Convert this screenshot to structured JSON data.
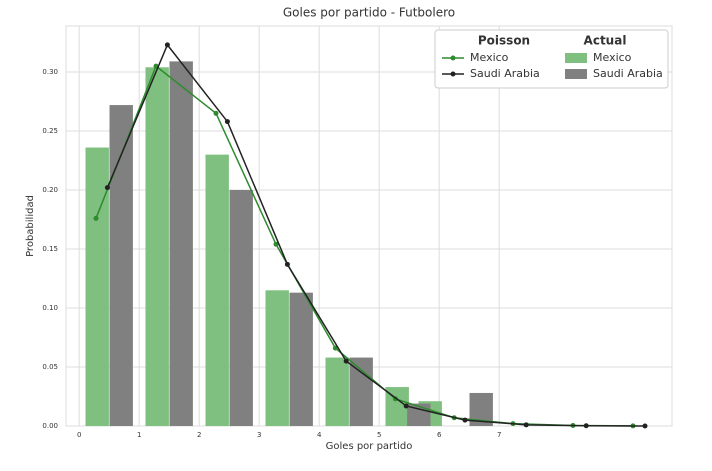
{
  "chart_data": {
    "type": "combo",
    "title": "Goles por partido - Futbolero",
    "xlabel": "Goles por partido",
    "ylabel": "Probabilidad",
    "xlim": [
      -0.22,
      9.88
    ],
    "xticks": [
      0,
      1,
      2,
      3,
      4,
      5,
      6,
      7
    ],
    "ylim": [
      0,
      0.339
    ],
    "yticks": [
      {
        "value": 0,
        "label": "0.00"
      },
      {
        "value": 0.05,
        "label": "0.05"
      },
      {
        "value": 0.1,
        "label": "0.10"
      },
      {
        "value": 0.15,
        "label": "0.15"
      },
      {
        "value": 0.2,
        "label": "0.20"
      },
      {
        "value": 0.25,
        "label": "0.25"
      },
      {
        "value": 0.3,
        "label": "0.30"
      }
    ],
    "grid": true,
    "legend": "upper right",
    "legend_titles": [
      "Poisson",
      "Actual"
    ],
    "series": [
      {
        "name": "Mexico",
        "type": "line",
        "color": "#2e8b2e",
        "x": [
          0.28,
          1.28,
          2.28,
          3.28,
          4.27,
          5.27,
          6.25,
          7.23,
          8.23,
          9.23
        ],
        "values": [
          0.176,
          0.305,
          0.265,
          0.154,
          0.066,
          0.023,
          0.007,
          0.002,
          0.0004,
          0.0001
        ]
      },
      {
        "name": "Saudi Arabia",
        "type": "line",
        "color": "#222222",
        "x": [
          0.47,
          1.47,
          2.47,
          3.47,
          4.45,
          5.45,
          6.43,
          7.45,
          8.45,
          9.43
        ],
        "values": [
          0.202,
          0.323,
          0.258,
          0.137,
          0.055,
          0.017,
          0.005,
          0.001,
          0.0002,
          0.0
        ]
      },
      {
        "name": "Mexico",
        "type": "bar",
        "color": "#7fbf7f",
        "x": [
          0.3,
          1.3,
          2.3,
          3.3,
          4.3,
          5.3,
          5.85
        ],
        "values": [
          0.236,
          0.304,
          0.23,
          0.115,
          0.058,
          0.033,
          0.021
        ]
      },
      {
        "name": "Saudi Arabia",
        "type": "bar",
        "color": "#808080",
        "x": [
          0.7,
          1.7,
          2.7,
          3.7,
          4.7,
          5.66,
          6.7
        ],
        "values": [
          0.272,
          0.309,
          0.2,
          0.113,
          0.058,
          0.019,
          0.028
        ]
      }
    ]
  }
}
